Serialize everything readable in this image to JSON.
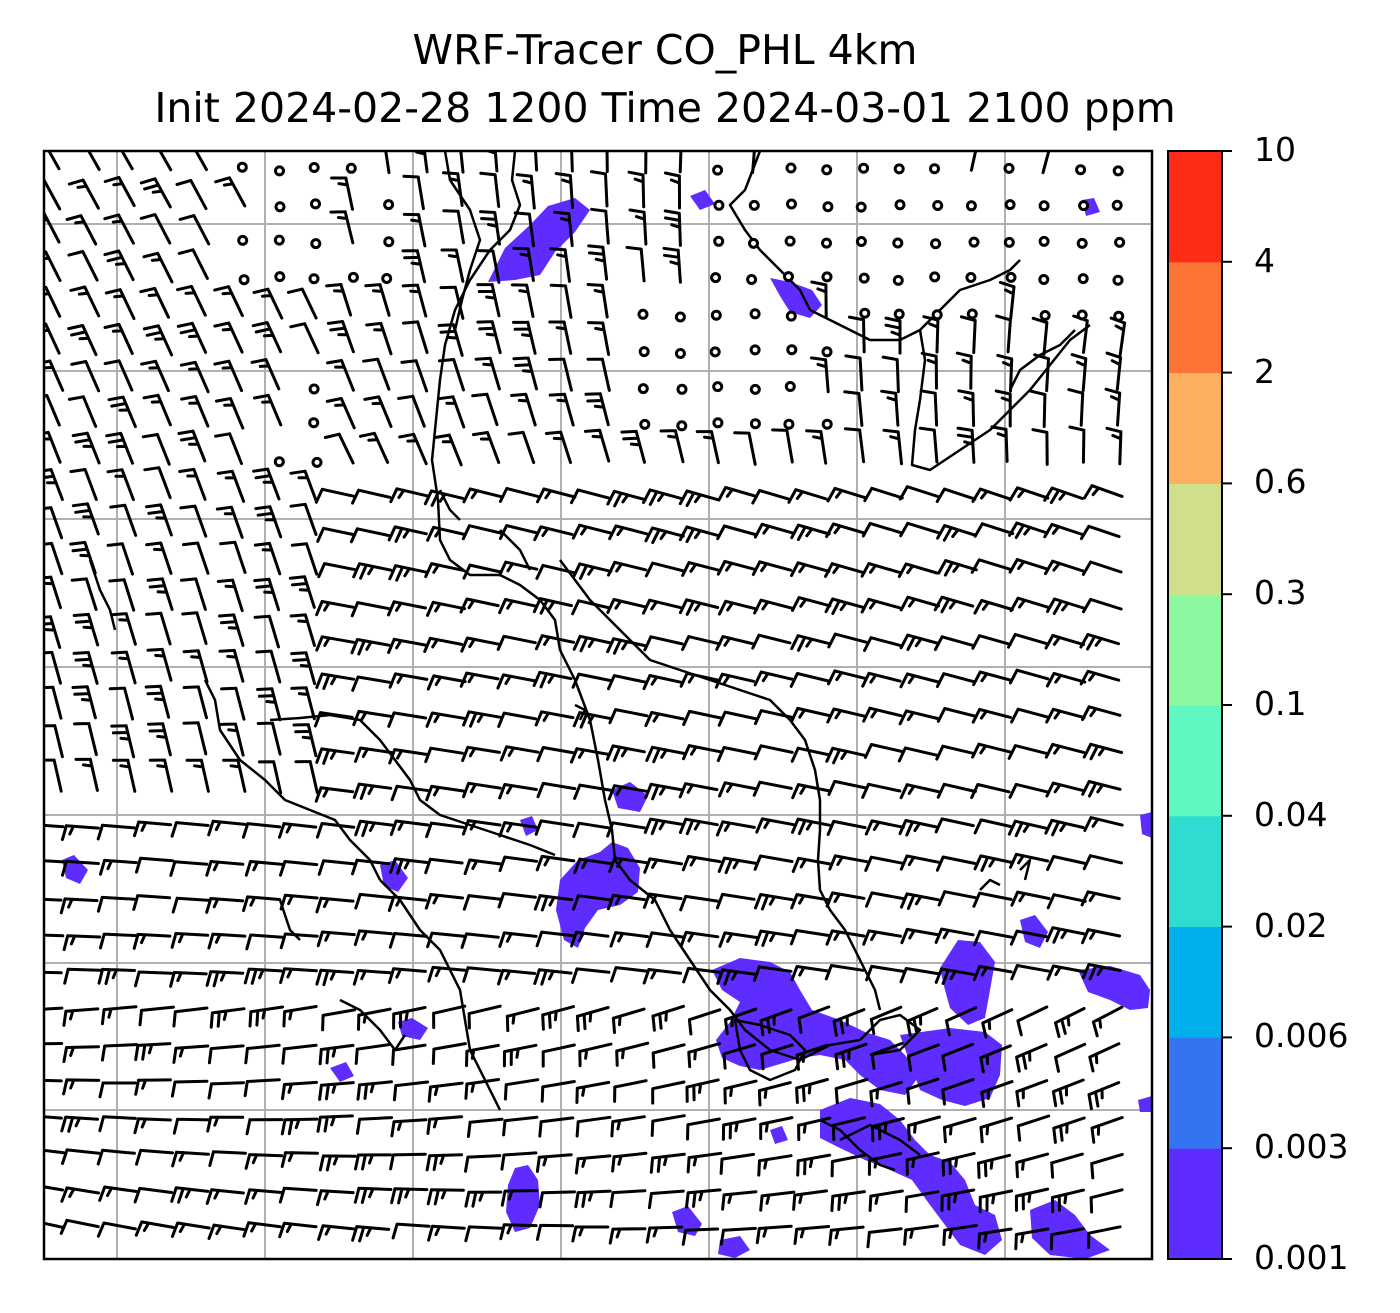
{
  "title": {
    "line1": "WRF-Tracer CO_PHL 4km",
    "line2": "Init 2024-02-28 1200 Time 2024-03-01 2100 ppm"
  },
  "colorbar": {
    "levels": [
      "0.001",
      "0.003",
      "0.006",
      "0.02",
      "0.04",
      "0.1",
      "0.3",
      "0.6",
      "2",
      "4",
      "10"
    ],
    "colors": [
      "#5f2cff",
      "#3474f0",
      "#00b0ec",
      "#2edcd2",
      "#5ef8c0",
      "#8ef8a0",
      "#d0e08a",
      "#fcb060",
      "#fe7434",
      "#fe2c16"
    ]
  },
  "map": {
    "plume_color": "#5f2cff",
    "grid_color": "#b0b0b0",
    "coastline_color": "#000000",
    "field": "wind barbs with CO tracer concentration"
  }
}
